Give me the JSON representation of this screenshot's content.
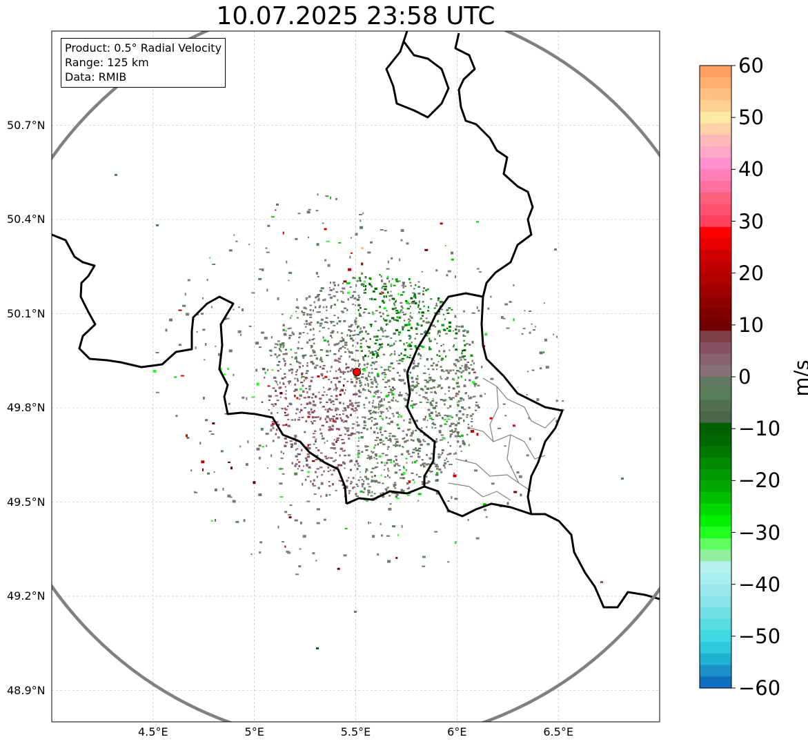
{
  "title": "10.07.2025 23:58 UTC",
  "info": {
    "product": "Product: 0.5° Radial Velocity",
    "range": "Range: 125 km",
    "data": "Data: RMIB"
  },
  "map": {
    "lon_range": [
      4.0,
      7.0
    ],
    "lat_range": [
      48.8,
      51.0
    ],
    "lon_ticks": [
      {
        "value": 4.5,
        "label": "4.5°E"
      },
      {
        "value": 5.0,
        "label": "5°E"
      },
      {
        "value": 5.5,
        "label": "5.5°E"
      },
      {
        "value": 6.0,
        "label": "6°E"
      },
      {
        "value": 6.5,
        "label": "6.5°E"
      }
    ],
    "lat_ticks": [
      {
        "value": 50.7,
        "label": "50.7°N"
      },
      {
        "value": 50.4,
        "label": "50.4°N"
      },
      {
        "value": 50.1,
        "label": "50.1°N"
      },
      {
        "value": 49.8,
        "label": "49.8°N"
      },
      {
        "value": 49.5,
        "label": "49.5°N"
      },
      {
        "value": 49.2,
        "label": "49.2°N"
      },
      {
        "value": 48.9,
        "label": "48.9°N"
      }
    ],
    "grid": true,
    "radar_site": {
      "lon": 5.505,
      "lat": 49.914
    },
    "range_ring_color": "#808080",
    "site_marker_color": "#ff0000"
  },
  "colorbar": {
    "unit": "m/s",
    "min": -60,
    "max": 60,
    "tick_values": [
      60,
      50,
      40,
      30,
      20,
      10,
      0,
      -10,
      -20,
      -30,
      -40,
      -50,
      -60
    ],
    "tick_labels": [
      "60",
      "50",
      "40",
      "30",
      "20",
      "10",
      "0",
      "−10",
      "−20",
      "−30",
      "−40",
      "−50",
      "−60"
    ],
    "colors_top_to_bottom": [
      "#ffa060",
      "#ffb070",
      "#ffc080",
      "#ffd090",
      "#ffe8a0",
      "#ffd0a8",
      "#ffb8b8",
      "#ffa8c8",
      "#ff90d0",
      "#ff80b8",
      "#ff70a0",
      "#ff6080",
      "#ff5070",
      "#ff4060",
      "#ff0000",
      "#e80000",
      "#d00000",
      "#c00000",
      "#b00000",
      "#a00000",
      "#900000",
      "#800000",
      "#700000",
      "#804048",
      "#885060",
      "#886070",
      "#887078",
      "#607860",
      "#588058",
      "#507050",
      "#486848",
      "#006000",
      "#006800",
      "#007800",
      "#008800",
      "#009800",
      "#00a800",
      "#00c000",
      "#00d800",
      "#00f000",
      "#20ff20",
      "#60ff60",
      "#90f0a0",
      "#b8f0f0",
      "#a8eef0",
      "#98e8ec",
      "#88e4e8",
      "#70e0e4",
      "#58dce0",
      "#40d8e0",
      "#30c8dc",
      "#20b0d0",
      "#1890c8",
      "#1070c0"
    ]
  }
}
